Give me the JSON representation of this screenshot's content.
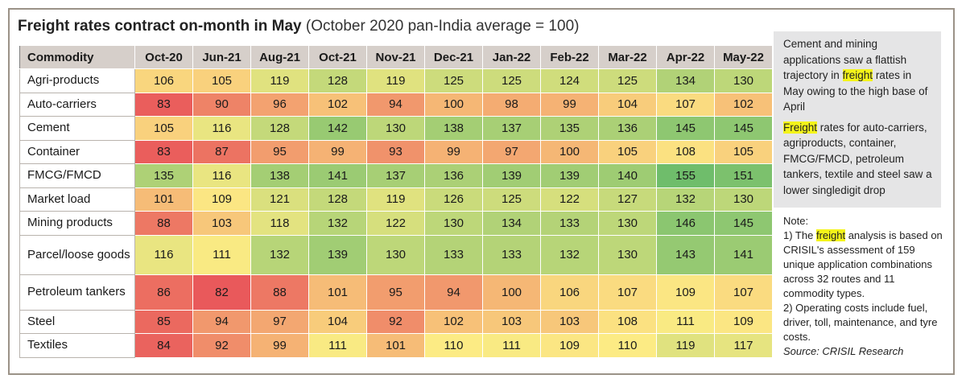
{
  "title": {
    "bold": "Freight rates contract on-month in May",
    "sub": "(October 2020 pan-India average = 100)"
  },
  "chart_data": {
    "type": "heatmap",
    "row_header": "Commodity",
    "columns": [
      "Oct-20",
      "Jun-21",
      "Aug-21",
      "Oct-21",
      "Nov-21",
      "Dec-21",
      "Jan-22",
      "Feb-22",
      "Mar-22",
      "Apr-22",
      "May-22"
    ],
    "rows": [
      {
        "label": "Agri-products",
        "values": [
          106,
          105,
          119,
          128,
          119,
          125,
          125,
          124,
          125,
          134,
          130
        ]
      },
      {
        "label": "Auto-carriers",
        "values": [
          83,
          90,
          96,
          102,
          94,
          100,
          98,
          99,
          104,
          107,
          102
        ]
      },
      {
        "label": "Cement",
        "values": [
          105,
          116,
          128,
          142,
          130,
          138,
          137,
          135,
          136,
          145,
          145
        ]
      },
      {
        "label": "Container",
        "values": [
          83,
          87,
          95,
          99,
          93,
          99,
          97,
          100,
          105,
          108,
          105
        ]
      },
      {
        "label": "FMCG/FMCD",
        "values": [
          135,
          116,
          138,
          141,
          137,
          136,
          139,
          139,
          140,
          155,
          151
        ]
      },
      {
        "label": "Market load",
        "values": [
          101,
          109,
          121,
          128,
          119,
          126,
          125,
          122,
          127,
          132,
          130
        ]
      },
      {
        "label": "Mining products",
        "values": [
          88,
          103,
          118,
          132,
          122,
          130,
          134,
          133,
          130,
          146,
          145
        ]
      },
      {
        "label": "Parcel/loose goods",
        "values": [
          116,
          111,
          132,
          139,
          130,
          133,
          133,
          132,
          130,
          143,
          141
        ]
      },
      {
        "label": "Petroleum tankers",
        "values": [
          86,
          82,
          88,
          101,
          95,
          94,
          100,
          106,
          107,
          109,
          107
        ]
      },
      {
        "label": "Steel",
        "values": [
          85,
          94,
          97,
          104,
          92,
          102,
          103,
          103,
          108,
          111,
          109
        ]
      },
      {
        "label": "Textiles",
        "values": [
          84,
          92,
          99,
          111,
          101,
          110,
          111,
          109,
          110,
          119,
          117
        ]
      }
    ],
    "colors": {
      "low": "#e9595b",
      "mid": "#fceb84",
      "high": "#6fbd6b"
    }
  },
  "side": {
    "p1": [
      {
        "text": "Cement and mining applications saw a flattish trajectory in "
      },
      {
        "text": "freight",
        "hl": true
      },
      {
        "text": " rates in May owing to the high base of April"
      }
    ],
    "p2": [
      {
        "text": "Freight",
        "hl": true
      },
      {
        "text": " rates for auto-carriers, agriproducts, container, FMCG/FMCD, petroleum tankers, textile and steel saw a lower singledigit drop"
      }
    ]
  },
  "note": {
    "heading": "Note:",
    "n1": [
      {
        "text": "1) The "
      },
      {
        "text": "freight",
        "hl": true
      },
      {
        "text": " analysis is based on CRISIL's assessment of 159 unique application combinations across 32 routes and 11 commodity types."
      }
    ],
    "n2": "2) Operating costs include fuel, driver, toll, maintenance, and tyre costs.",
    "source": "Source: CRISIL Research"
  }
}
